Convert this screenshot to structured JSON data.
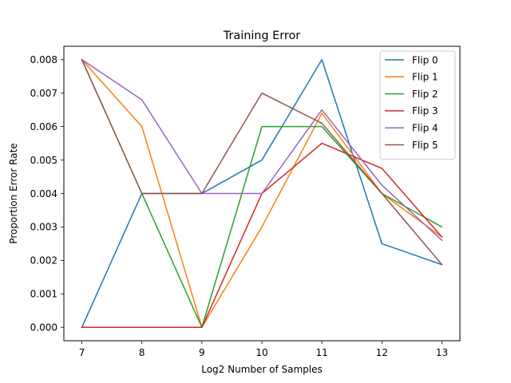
{
  "chart_data": {
    "type": "line",
    "title": "Training Error",
    "xlabel": "Log2 Number of Samples",
    "ylabel": "Proportion Error Rate",
    "x": [
      7,
      8,
      9,
      10,
      11,
      12,
      13
    ],
    "xlim": [
      6.7,
      13.3
    ],
    "ylim": [
      -0.0004,
      0.0084
    ],
    "xticks": [
      7,
      8,
      9,
      10,
      11,
      12,
      13
    ],
    "yticks": [
      0.0,
      0.001,
      0.002,
      0.003,
      0.004,
      0.005,
      0.006,
      0.007,
      0.008
    ],
    "ytick_labels": [
      "0.000",
      "0.001",
      "0.002",
      "0.003",
      "0.004",
      "0.005",
      "0.006",
      "0.007",
      "0.008"
    ],
    "grid": false,
    "legend_position": "top-right",
    "series": [
      {
        "name": "Flip 0",
        "color": "#1f77b4",
        "values": [
          0.0,
          0.004,
          0.004,
          0.005,
          0.008,
          0.0025,
          0.001875
        ]
      },
      {
        "name": "Flip 1",
        "color": "#ff7f0e",
        "values": [
          0.008,
          0.006,
          0.0,
          0.003,
          0.0064,
          0.004,
          0.0027
        ]
      },
      {
        "name": "Flip 2",
        "color": "#2ca02c",
        "values": [
          0.008,
          0.004,
          0.0,
          0.006,
          0.006,
          0.004,
          0.003
        ]
      },
      {
        "name": "Flip 3",
        "color": "#d62728",
        "values": [
          0.0,
          0.0,
          0.0,
          0.004,
          0.0055,
          0.00475,
          0.0027
        ]
      },
      {
        "name": "Flip 4",
        "color": "#9467bd",
        "values": [
          0.008,
          0.0068,
          0.004,
          0.004,
          0.0065,
          0.00425,
          0.0026
        ]
      },
      {
        "name": "Flip 5",
        "color": "#8c564b",
        "values": [
          0.008,
          0.004,
          0.004,
          0.007,
          0.0061,
          0.004,
          0.001875
        ]
      }
    ]
  }
}
